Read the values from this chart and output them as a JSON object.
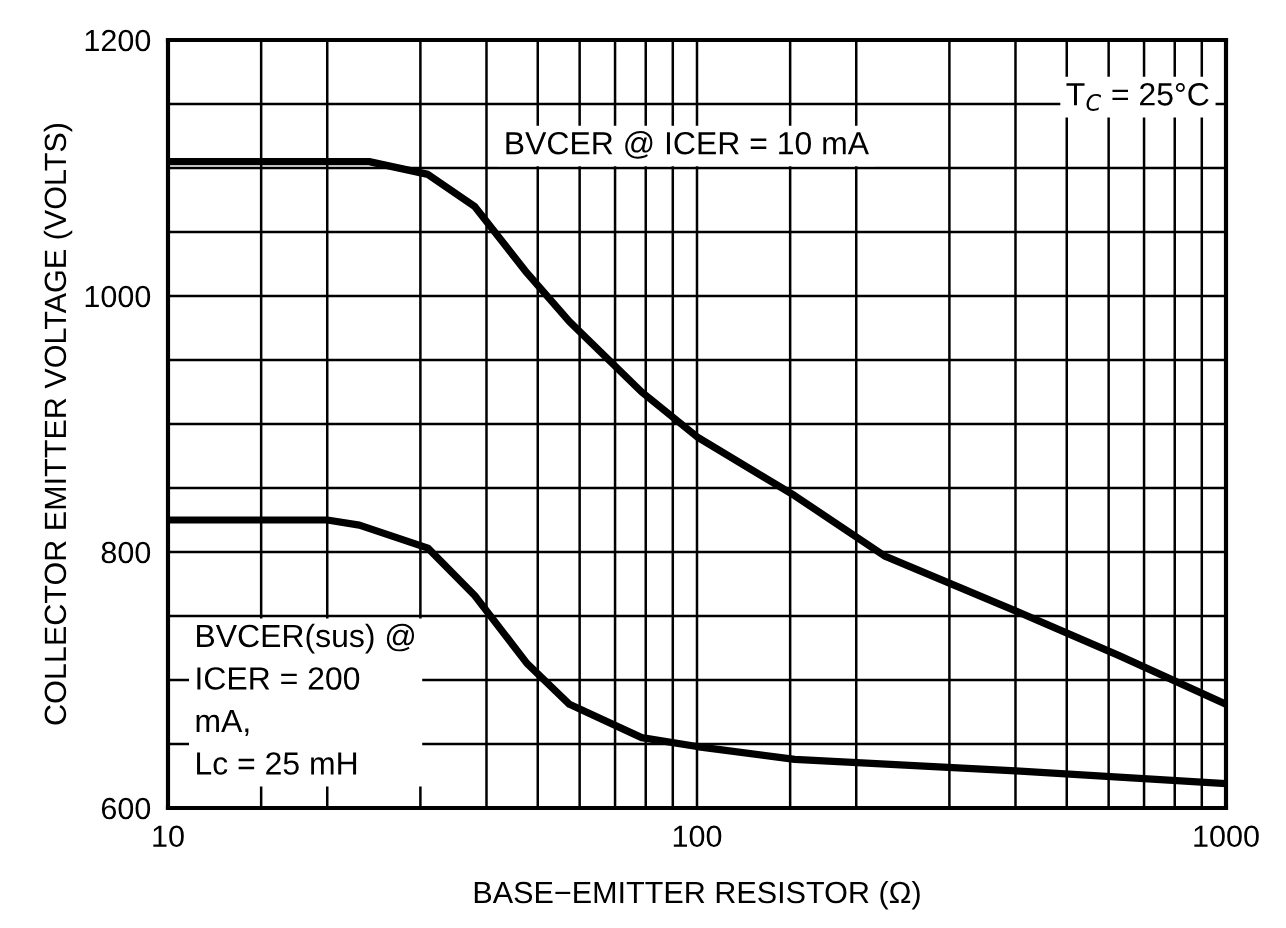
{
  "chart_data": {
    "type": "line",
    "xlabel": "BASE−EMITTER RESISTOR (Ω)",
    "ylabel": "COLLECTOR EMITTER VOLTAGE (VOLTS)",
    "log": "x",
    "xlim": [
      10,
      1000
    ],
    "xticks": [
      10,
      100,
      1000
    ],
    "ylim": [
      600,
      1200
    ],
    "yticks": [
      600,
      {
        "value": 650,
        "label": null
      },
      {
        "value": 700,
        "label": null
      },
      {
        "value": 750,
        "label": null
      },
      800,
      {
        "value": 850,
        "label": null
      },
      {
        "value": 900,
        "label": null
      },
      {
        "value": 950,
        "label": null
      },
      1000,
      {
        "value": 1050,
        "label": null
      },
      {
        "value": 1100,
        "label": null
      },
      {
        "value": 1150,
        "label": null
      },
      1200
    ],
    "grid": true,
    "marker": "none",
    "line_style": "solid",
    "series": [
      {
        "color": "#000000",
        "x": [
          10,
          24,
          31,
          38,
          47.7,
          57.4,
          78.6,
          100,
          153,
          226,
          400,
          628,
          1000
        ],
        "values": [
          1105,
          1105,
          1095,
          1070,
          1018,
          980,
          925,
          890,
          844,
          797,
          754,
          719,
          681
        ]
      },
      {
        "color": "#000000",
        "x": [
          10,
          20,
          23,
          31,
          38,
          47.7,
          57.4,
          78.6,
          100,
          153,
          400,
          1000
        ],
        "values": [
          825,
          825,
          821,
          803,
          766,
          713,
          681,
          655,
          648,
          638,
          629,
          619
        ]
      }
    ],
    "annotations": [
      "T$_{C}$ = 25°C",
      "BVCER @ ICER = 10 mA",
      "BVCER(sus) @\nICER = 200\nmA,\nLc = 25 mH"
    ]
  }
}
